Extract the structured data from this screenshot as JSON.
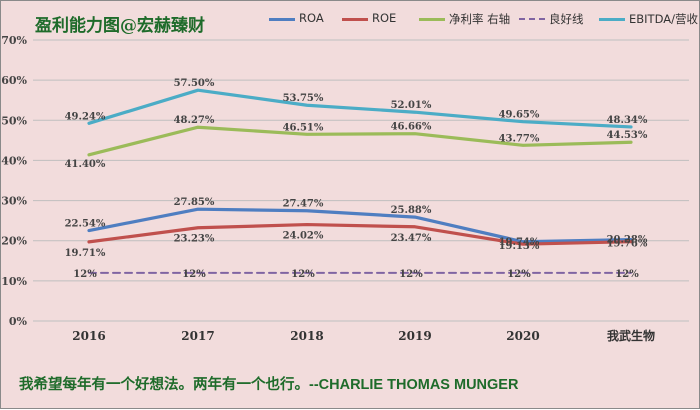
{
  "title": "盈利能力图@宏赫臻财",
  "quote": {
    "text": "我希望每年有一个好想法。两年有一个也行。",
    "author": "--CHARLIE THOMAS MUNGER"
  },
  "chart_data": {
    "type": "line",
    "categories": [
      "2016",
      "2017",
      "2018",
      "2019",
      "2020",
      "我武生物"
    ],
    "ylim": [
      0,
      70
    ],
    "ytick_labels": [
      "0%",
      "10%",
      "20%",
      "30%",
      "40%",
      "50%",
      "60%",
      "70%"
    ],
    "grid": true,
    "legend_position": "top",
    "series": [
      {
        "name": "ROA",
        "color": "#4f7ec1",
        "dashed": false,
        "values": [
          22.54,
          27.85,
          27.47,
          25.88,
          19.74,
          20.28
        ],
        "labels": [
          "22.54%",
          "27.85%",
          "27.47%",
          "25.88%",
          "19.74%",
          "20.28%"
        ]
      },
      {
        "name": "ROE",
        "color": "#c0504d",
        "dashed": false,
        "values": [
          19.71,
          23.23,
          24.02,
          23.47,
          19.13,
          19.76
        ],
        "labels": [
          "19.71%",
          "23.23%",
          "24.02%",
          "23.47%",
          "19.13%",
          "19.76%"
        ]
      },
      {
        "name": "净利率 右轴",
        "color": "#9bbb59",
        "dashed": false,
        "values": [
          41.4,
          48.27,
          46.51,
          46.66,
          43.77,
          44.53
        ],
        "labels": [
          "41.40%",
          "48.27%",
          "46.51%",
          "46.66%",
          "43.77%",
          "44.53%"
        ]
      },
      {
        "name": "良好线",
        "color": "#8064a2",
        "dashed": true,
        "values": [
          12,
          12,
          12,
          12,
          12,
          12
        ],
        "labels": [
          "12%",
          "12%",
          "12%",
          "12%",
          "12%",
          "12%"
        ]
      },
      {
        "name": "EBITDA/营收",
        "color": "#4bacc6",
        "dashed": false,
        "values": [
          49.24,
          57.5,
          53.75,
          52.01,
          49.65,
          48.34
        ],
        "labels": [
          "49.24%",
          "57.50%",
          "53.75%",
          "52.01%",
          "49.65%",
          "48.34%"
        ]
      }
    ]
  }
}
